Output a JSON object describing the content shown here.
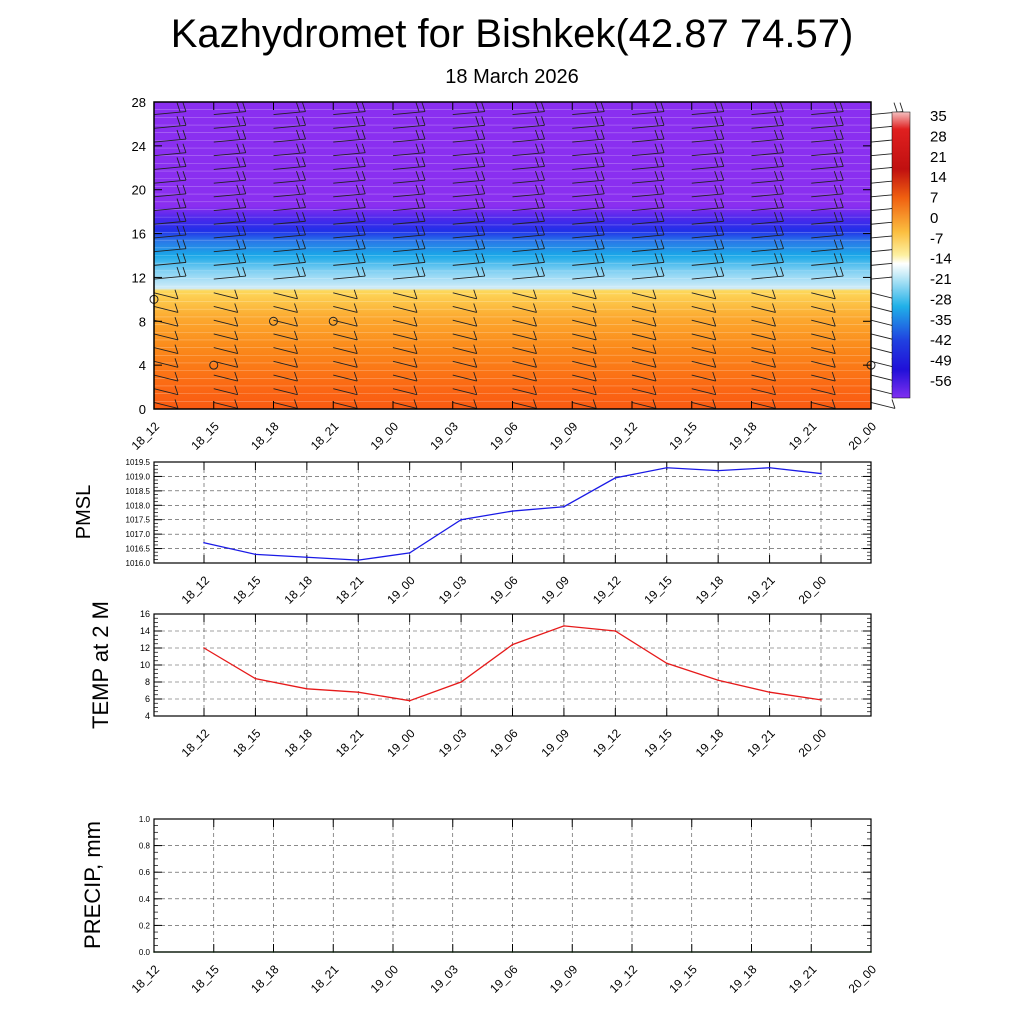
{
  "title": "Kazhydromet for Bishkek(42.87 74.57)",
  "subtitle": "18 March 2026",
  "chart_data": [
    {
      "type": "heatmap",
      "name": "temperature-cross-section",
      "x_ticks": [
        "18_12",
        "18_15",
        "18_18",
        "18_21",
        "19_00",
        "19_03",
        "19_06",
        "19_09",
        "19_12",
        "19_15",
        "19_18",
        "19_21",
        "20_00"
      ],
      "y_ticks": [
        "0",
        "4",
        "8",
        "12",
        "16",
        "20",
        "24",
        "28"
      ],
      "ylim": [
        0,
        28
      ],
      "colorbar_labels": [
        "35",
        "28",
        "21",
        "14",
        "7",
        "0",
        "-7",
        "-14",
        "-21",
        "-28",
        "-35",
        "-42",
        "-49",
        "-56"
      ],
      "colors": {
        "warm_low": "#fa5a12",
        "warm_mid": "#fb8a1a",
        "warm_high": "#fdd85a",
        "cold_light": "#d0ecf8",
        "cold_mid": "#1aa8e8",
        "cold_deep": "#2030e8",
        "upper": "#8a2ff0"
      },
      "bands": [
        {
          "y0": 0,
          "y1": 2,
          "value": "warm_low"
        },
        {
          "y0": 2,
          "y1": 7,
          "value": "warm_mid"
        },
        {
          "y0": 7,
          "y1": 11,
          "value": "warm_high"
        },
        {
          "y0": 11,
          "y1": 13,
          "value": "cold_light"
        },
        {
          "y0": 13,
          "y1": 15.5,
          "value": "cold_mid"
        },
        {
          "y0": 15.5,
          "y1": 18,
          "value": "cold_deep"
        },
        {
          "y0": 18,
          "y1": 28,
          "value": "upper"
        }
      ],
      "wind_barbs": true
    },
    {
      "type": "line",
      "name": "pmsl",
      "ylabel": "PMSL",
      "color": "#1a1ae6",
      "x": [
        "18_12",
        "18_15",
        "18_18",
        "18_21",
        "19_00",
        "19_03",
        "19_06",
        "19_09",
        "19_12",
        "19_15",
        "19_18",
        "19_21",
        "20_00"
      ],
      "values": [
        1016.7,
        1016.3,
        1016.2,
        1016.1,
        1016.35,
        1017.5,
        1017.8,
        1017.95,
        1018.95,
        1019.3,
        1019.2,
        1019.3,
        1019.1
      ],
      "ylim": [
        1016.0,
        1019.5
      ],
      "y_ticks": [
        "1016.0",
        "1016.5",
        "1017.0",
        "1017.5",
        "1018.0",
        "1018.5",
        "1019.0",
        "1019.5"
      ]
    },
    {
      "type": "line",
      "name": "temp2m",
      "ylabel": "TEMP at 2 M",
      "color": "#e61a1a",
      "x": [
        "18_12",
        "18_15",
        "18_18",
        "18_21",
        "19_00",
        "19_03",
        "19_06",
        "19_09",
        "19_12",
        "19_15",
        "19_18",
        "19_21",
        "20_00"
      ],
      "values": [
        12.0,
        8.4,
        7.2,
        6.8,
        5.8,
        8.0,
        12.4,
        14.6,
        14.0,
        10.2,
        8.2,
        6.8,
        5.9
      ],
      "ylim": [
        4,
        16
      ],
      "y_ticks": [
        "4",
        "6",
        "8",
        "10",
        "12",
        "14",
        "16"
      ]
    },
    {
      "type": "line",
      "name": "precip",
      "ylabel": "PRECIP, mm",
      "color": "#1a7a1a",
      "x": [
        "18_12",
        "18_15",
        "18_18",
        "18_21",
        "19_00",
        "19_03",
        "19_06",
        "19_09",
        "19_12",
        "19_15",
        "19_18",
        "19_21",
        "20_00"
      ],
      "values": [
        0,
        0,
        0,
        0,
        0,
        0,
        0,
        0,
        0,
        0,
        0,
        0,
        0
      ],
      "ylim": [
        0,
        1.0
      ],
      "y_ticks": [
        "0.0",
        "0.2",
        "0.4",
        "0.6",
        "0.8",
        "1.0"
      ]
    }
  ]
}
